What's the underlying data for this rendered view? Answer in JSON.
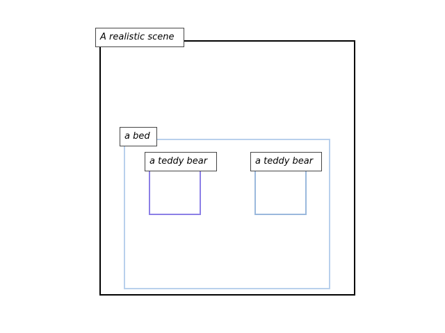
{
  "diagram": {
    "regions": [
      {
        "id": "scene",
        "label": "A realistic scene",
        "color": "#000000"
      },
      {
        "id": "bed",
        "label": "a bed",
        "color": "#b8d0ec"
      },
      {
        "id": "teddy_bear_1",
        "label": "a teddy bear",
        "color": "#8b7fe6"
      },
      {
        "id": "teddy_bear_2",
        "label": "a teddy bear",
        "color": "#9ab8dc"
      }
    ]
  }
}
